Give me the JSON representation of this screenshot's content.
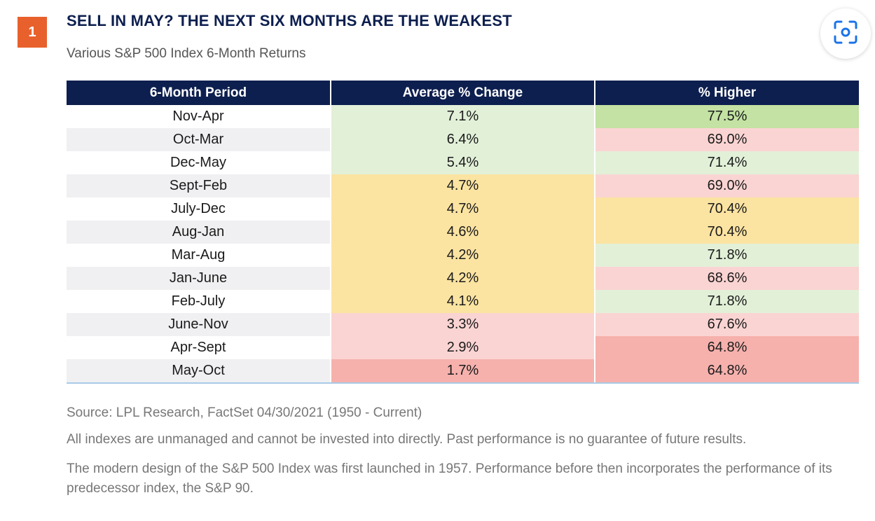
{
  "badge": "1",
  "title": "SELL IN MAY? THE NEXT SIX MONTHS ARE THE WEAKEST",
  "subtitle": "Various S&P 500 Index 6-Month Returns",
  "lens_icon": "google-lens-icon",
  "colors": {
    "header": "#0d1f4f",
    "badge": "#e8612c",
    "strong_green": "#c3e2a3",
    "light_green": "#e2f0d8",
    "yellow": "#fbe3a1",
    "light_pink": "#fad4d2",
    "pink": "#f6b1ad",
    "stripe": "#f0f0f2"
  },
  "chart_data": {
    "type": "table",
    "title": "SELL IN MAY? THE NEXT SIX MONTHS ARE THE WEAKEST",
    "subtitle": "Various S&P 500 Index 6-Month Returns",
    "columns": [
      "6-Month Period",
      "Average % Change",
      "% Higher"
    ],
    "rows": [
      {
        "period": "Nov-Apr",
        "avg": "7.1%",
        "higher": "77.5%",
        "avg_color": "#e2f0d8",
        "higher_color": "#c3e2a3",
        "period_bg": "#ffffff"
      },
      {
        "period": "Oct-Mar",
        "avg": "6.4%",
        "higher": "69.0%",
        "avg_color": "#e2f0d8",
        "higher_color": "#fad4d2",
        "period_bg": "#f0f0f2"
      },
      {
        "period": "Dec-May",
        "avg": "5.4%",
        "higher": "71.4%",
        "avg_color": "#e2f0d8",
        "higher_color": "#e2f0d8",
        "period_bg": "#ffffff"
      },
      {
        "period": "Sept-Feb",
        "avg": "4.7%",
        "higher": "69.0%",
        "avg_color": "#fbe3a1",
        "higher_color": "#fad4d2",
        "period_bg": "#f0f0f2"
      },
      {
        "period": "July-Dec",
        "avg": "4.7%",
        "higher": "70.4%",
        "avg_color": "#fbe3a1",
        "higher_color": "#fbe3a1",
        "period_bg": "#ffffff"
      },
      {
        "period": "Aug-Jan",
        "avg": "4.6%",
        "higher": "70.4%",
        "avg_color": "#fbe3a1",
        "higher_color": "#fbe3a1",
        "period_bg": "#f0f0f2"
      },
      {
        "period": "Mar-Aug",
        "avg": "4.2%",
        "higher": "71.8%",
        "avg_color": "#fbe3a1",
        "higher_color": "#e2f0d8",
        "period_bg": "#ffffff"
      },
      {
        "period": "Jan-June",
        "avg": "4.2%",
        "higher": "68.6%",
        "avg_color": "#fbe3a1",
        "higher_color": "#fad4d2",
        "period_bg": "#f0f0f2"
      },
      {
        "period": "Feb-July",
        "avg": "4.1%",
        "higher": "71.8%",
        "avg_color": "#fbe3a1",
        "higher_color": "#e2f0d8",
        "period_bg": "#ffffff"
      },
      {
        "period": "June-Nov",
        "avg": "3.3%",
        "higher": "67.6%",
        "avg_color": "#fad4d2",
        "higher_color": "#fad4d2",
        "period_bg": "#f0f0f2"
      },
      {
        "period": "Apr-Sept",
        "avg": "2.9%",
        "higher": "64.8%",
        "avg_color": "#fad4d2",
        "higher_color": "#f6b1ad",
        "period_bg": "#ffffff"
      },
      {
        "period": "May-Oct",
        "avg": "1.7%",
        "higher": "64.8%",
        "avg_color": "#f6b1ad",
        "higher_color": "#f6b1ad",
        "period_bg": "#f0f0f2"
      }
    ]
  },
  "notes": {
    "source": "Source: LPL Research, FactSet 04/30/2021 (1950 - Current)",
    "disclaimer": "All indexes are unmanaged and cannot be invested into directly. Past performance is no guarantee of future results.",
    "history": "The modern design of the S&P 500 Index was first launched in 1957. Performance before then incorporates the performance of its predecessor index, the S&P 90."
  }
}
